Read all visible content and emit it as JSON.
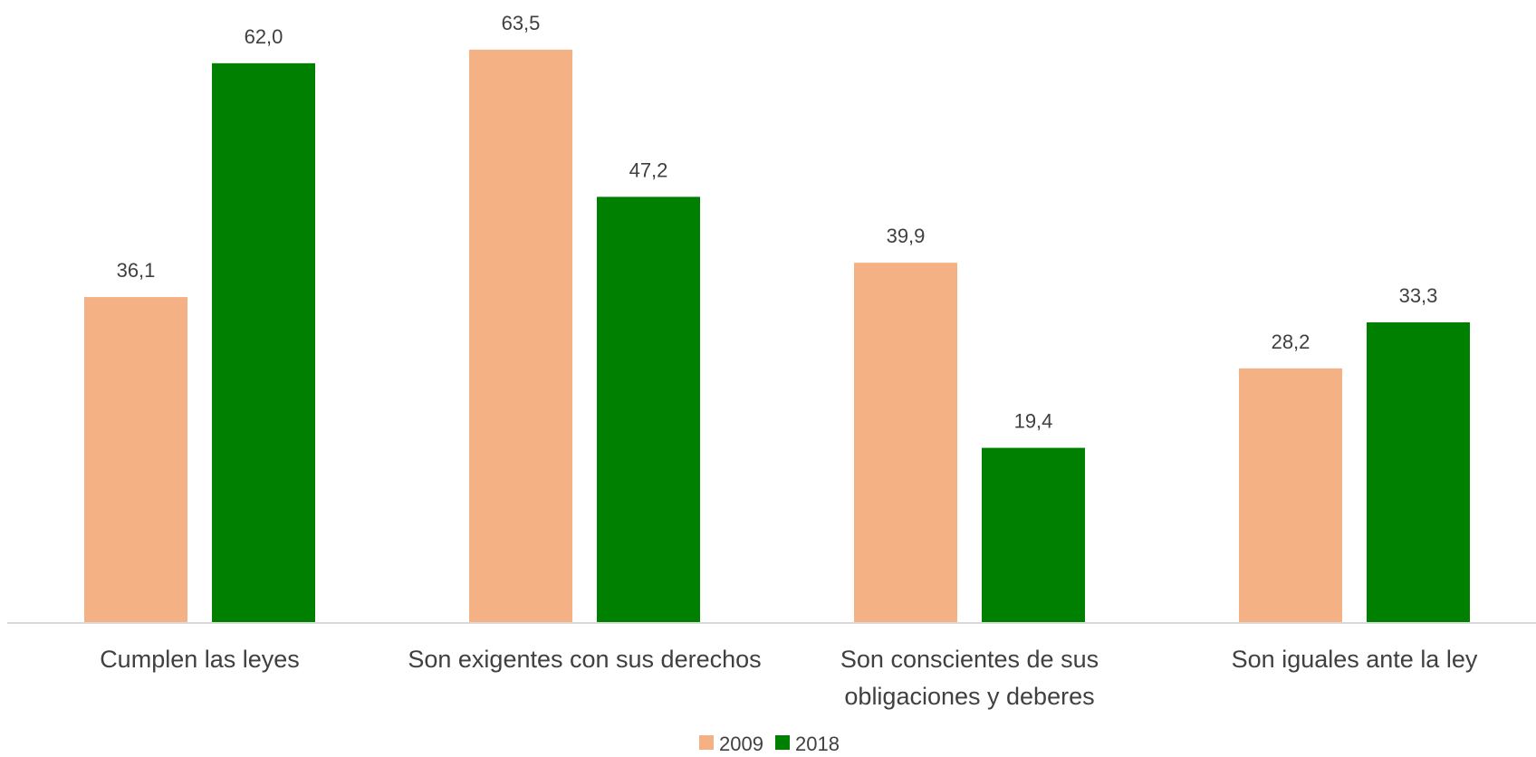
{
  "chart_data": {
    "type": "bar",
    "categories": [
      [
        "Cumplen las leyes"
      ],
      [
        "Son exigentes con sus derechos"
      ],
      [
        "Son conscientes de sus",
        "obligaciones y deberes"
      ],
      [
        "Son iguales ante la ley"
      ]
    ],
    "series": [
      {
        "name": "2009",
        "color": "#F4B183",
        "values": [
          36.1,
          63.5,
          39.9,
          28.2
        ],
        "labels": [
          "36,1",
          "63,5",
          "39,9",
          "28,2"
        ]
      },
      {
        "name": "2018",
        "color": "#008000",
        "values": [
          62.0,
          47.2,
          19.4,
          33.3
        ],
        "labels": [
          "62,0",
          "47,2",
          "19,4",
          "33,3"
        ]
      }
    ],
    "ylim": [
      0,
      68
    ],
    "grid": false,
    "legend": "bottom-center",
    "axis_color": "#D9D9D9"
  }
}
